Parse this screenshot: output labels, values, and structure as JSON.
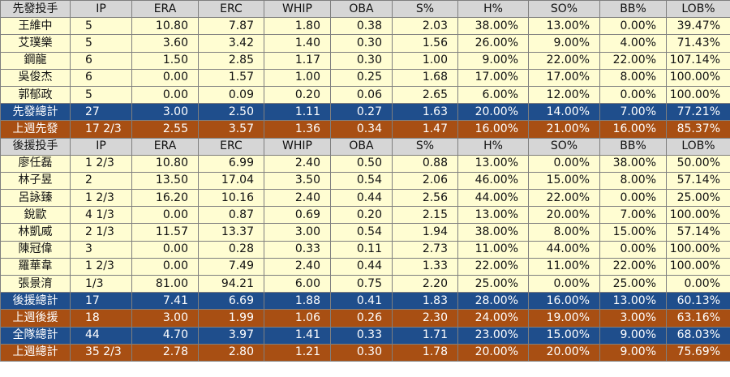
{
  "starters": {
    "headers": [
      "先發投手",
      "IP",
      "ERA",
      "ERC",
      "WHIP",
      "OBA",
      "S%",
      "H%",
      "SO%",
      "BB%",
      "LOB%"
    ],
    "rows": [
      [
        "王維中",
        "5",
        "10.80",
        "7.87",
        "1.80",
        "0.38",
        "2.03",
        "38.00%",
        "13.00%",
        "0.00%",
        "39.47%"
      ],
      [
        "艾璞樂",
        "5",
        "3.60",
        "3.42",
        "1.40",
        "0.30",
        "1.56",
        "26.00%",
        "9.00%",
        "4.00%",
        "71.43%"
      ],
      [
        "鋼龍",
        "6",
        "1.50",
        "2.85",
        "1.17",
        "0.30",
        "1.00",
        "9.00%",
        "22.00%",
        "22.00%",
        "107.14%"
      ],
      [
        "吳俊杰",
        "6",
        "0.00",
        "1.57",
        "1.00",
        "0.25",
        "1.68",
        "17.00%",
        "17.00%",
        "8.00%",
        "100.00%"
      ],
      [
        "郭郁政",
        "5",
        "0.00",
        "0.09",
        "0.20",
        "0.06",
        "2.65",
        "6.00%",
        "12.00%",
        "0.00%",
        "100.00%"
      ]
    ],
    "total": [
      "先發總計",
      "27",
      "3.00",
      "2.50",
      "1.11",
      "0.27",
      "1.63",
      "20.00%",
      "14.00%",
      "7.00%",
      "77.21%"
    ],
    "last_week": [
      "上週先發",
      "17 2/3",
      "2.55",
      "3.57",
      "1.36",
      "0.34",
      "1.47",
      "16.00%",
      "21.00%",
      "16.00%",
      "85.37%"
    ]
  },
  "relievers": {
    "headers": [
      "後援投手",
      "IP",
      "ERA",
      "ERC",
      "WHIP",
      "OBA",
      "S%",
      "H%",
      "SO%",
      "BB%",
      "LOB%"
    ],
    "rows": [
      [
        "廖任磊",
        "1 2/3",
        "10.80",
        "6.99",
        "2.40",
        "0.50",
        "0.88",
        "13.00%",
        "0.00%",
        "38.00%",
        "50.00%"
      ],
      [
        "林子昱",
        "2",
        "13.50",
        "17.04",
        "3.50",
        "0.54",
        "2.06",
        "46.00%",
        "15.00%",
        "8.00%",
        "57.14%"
      ],
      [
        "呂詠臻",
        "1 2/3",
        "16.20",
        "10.16",
        "2.40",
        "0.44",
        "2.56",
        "44.00%",
        "22.00%",
        "0.00%",
        "25.00%"
      ],
      [
        "銳歐",
        "4 1/3",
        "0.00",
        "0.87",
        "0.69",
        "0.20",
        "2.15",
        "13.00%",
        "20.00%",
        "7.00%",
        "100.00%"
      ],
      [
        "林凱威",
        "2 1/3",
        "11.57",
        "13.37",
        "3.00",
        "0.54",
        "1.94",
        "38.00%",
        "8.00%",
        "15.00%",
        "57.14%"
      ],
      [
        "陳冠偉",
        "3",
        "0.00",
        "0.28",
        "0.33",
        "0.11",
        "2.73",
        "11.00%",
        "44.00%",
        "0.00%",
        "100.00%"
      ],
      [
        "羅華韋",
        "1 2/3",
        "0.00",
        "7.49",
        "2.40",
        "0.44",
        "1.33",
        "22.00%",
        "11.00%",
        "22.00%",
        "100.00%"
      ],
      [
        "張景淯",
        "1/3",
        "81.00",
        "94.21",
        "6.00",
        "0.75",
        "2.20",
        "25.00%",
        "0.00%",
        "25.00%",
        "0.00%"
      ]
    ],
    "total": [
      "後援總計",
      "17",
      "7.41",
      "6.69",
      "1.88",
      "0.41",
      "1.83",
      "28.00%",
      "16.00%",
      "13.00%",
      "60.13%"
    ],
    "last_week": [
      "上週後援",
      "18",
      "3.00",
      "1.99",
      "1.06",
      "0.26",
      "2.30",
      "24.00%",
      "19.00%",
      "3.00%",
      "63.16%"
    ]
  },
  "team_total": [
    "全隊總計",
    "44",
    "4.70",
    "3.97",
    "1.41",
    "0.33",
    "1.71",
    "23.00%",
    "15.00%",
    "9.00%",
    "68.03%"
  ],
  "team_last_week": [
    "上週總計",
    "35 2/3",
    "2.78",
    "2.80",
    "1.21",
    "0.30",
    "1.78",
    "20.00%",
    "20.00%",
    "9.00%",
    "75.69%"
  ],
  "colors": {
    "header_bg": "#d6d6d6",
    "row_bg": "#fffdd2",
    "total_bg": "#1f4e8c",
    "last_week_bg": "#a84f13",
    "border": "#7f7f7f"
  }
}
